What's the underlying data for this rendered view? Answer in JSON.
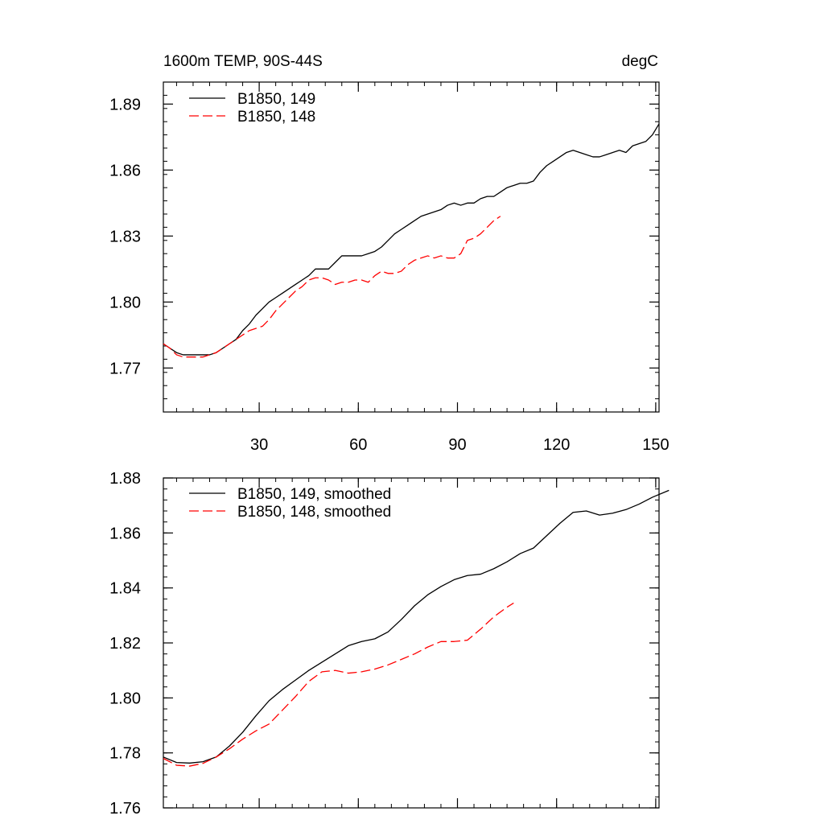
{
  "header": {
    "title_left": "1600m TEMP, 90S-44S",
    "title_right": "degC"
  },
  "chart_data": [
    {
      "type": "line",
      "title": "1600m TEMP, 90S-44S",
      "units": "degC",
      "xlim": [
        1,
        151
      ],
      "ylim": [
        1.75,
        1.9
      ],
      "xticks": [
        30,
        60,
        90,
        120,
        150
      ],
      "yticks": [
        1.77,
        1.8,
        1.83,
        1.86,
        1.89
      ],
      "ytick_labels": [
        "1.77",
        "1.80",
        "1.83",
        "1.86",
        "1.89"
      ],
      "xtick_labels": [
        "30",
        "60",
        "90",
        "120",
        "150"
      ],
      "grid": false,
      "legend_position": "top-left",
      "series": [
        {
          "name": "B1850, 149",
          "color": "#000000",
          "style": "solid",
          "points": [
            [
              1,
              1.781
            ],
            [
              3,
              1.779
            ],
            [
              5,
              1.777
            ],
            [
              7,
              1.776
            ],
            [
              9,
              1.776
            ],
            [
              11,
              1.776
            ],
            [
              13,
              1.776
            ],
            [
              15,
              1.776
            ],
            [
              17,
              1.777
            ],
            [
              19,
              1.779
            ],
            [
              21,
              1.781
            ],
            [
              23,
              1.783
            ],
            [
              25,
              1.787
            ],
            [
              27,
              1.79
            ],
            [
              29,
              1.794
            ],
            [
              31,
              1.797
            ],
            [
              33,
              1.8
            ],
            [
              35,
              1.802
            ],
            [
              37,
              1.804
            ],
            [
              39,
              1.806
            ],
            [
              41,
              1.808
            ],
            [
              43,
              1.81
            ],
            [
              45,
              1.812
            ],
            [
              47,
              1.815
            ],
            [
              49,
              1.815
            ],
            [
              51,
              1.815
            ],
            [
              53,
              1.818
            ],
            [
              55,
              1.821
            ],
            [
              57,
              1.821
            ],
            [
              59,
              1.821
            ],
            [
              61,
              1.821
            ],
            [
              63,
              1.822
            ],
            [
              65,
              1.823
            ],
            [
              67,
              1.825
            ],
            [
              69,
              1.828
            ],
            [
              71,
              1.831
            ],
            [
              73,
              1.833
            ],
            [
              75,
              1.835
            ],
            [
              77,
              1.837
            ],
            [
              79,
              1.839
            ],
            [
              81,
              1.84
            ],
            [
              83,
              1.841
            ],
            [
              85,
              1.842
            ],
            [
              87,
              1.844
            ],
            [
              89,
              1.845
            ],
            [
              91,
              1.844
            ],
            [
              93,
              1.845
            ],
            [
              95,
              1.845
            ],
            [
              97,
              1.847
            ],
            [
              99,
              1.848
            ],
            [
              101,
              1.848
            ],
            [
              103,
              1.85
            ],
            [
              105,
              1.852
            ],
            [
              107,
              1.853
            ],
            [
              109,
              1.854
            ],
            [
              111,
              1.854
            ],
            [
              113,
              1.855
            ],
            [
              115,
              1.859
            ],
            [
              117,
              1.862
            ],
            [
              119,
              1.864
            ],
            [
              121,
              1.866
            ],
            [
              123,
              1.868
            ],
            [
              125,
              1.869
            ],
            [
              127,
              1.868
            ],
            [
              129,
              1.867
            ],
            [
              131,
              1.866
            ],
            [
              133,
              1.866
            ],
            [
              135,
              1.867
            ],
            [
              137,
              1.868
            ],
            [
              139,
              1.869
            ],
            [
              141,
              1.868
            ],
            [
              143,
              1.871
            ],
            [
              145,
              1.872
            ],
            [
              147,
              1.873
            ],
            [
              149,
              1.876
            ],
            [
              151,
              1.881
            ]
          ]
        },
        {
          "name": "B1850, 148",
          "color": "#ff0000",
          "style": "dashed",
          "points": [
            [
              1,
              1.781
            ],
            [
              3,
              1.779
            ],
            [
              5,
              1.776
            ],
            [
              7,
              1.775
            ],
            [
              9,
              1.775
            ],
            [
              11,
              1.775
            ],
            [
              13,
              1.775
            ],
            [
              15,
              1.776
            ],
            [
              17,
              1.777
            ],
            [
              19,
              1.779
            ],
            [
              21,
              1.781
            ],
            [
              23,
              1.783
            ],
            [
              25,
              1.785
            ],
            [
              27,
              1.787
            ],
            [
              29,
              1.788
            ],
            [
              31,
              1.789
            ],
            [
              33,
              1.792
            ],
            [
              35,
              1.796
            ],
            [
              37,
              1.799
            ],
            [
              39,
              1.802
            ],
            [
              41,
              1.805
            ],
            [
              43,
              1.807
            ],
            [
              45,
              1.81
            ],
            [
              47,
              1.811
            ],
            [
              49,
              1.811
            ],
            [
              51,
              1.81
            ],
            [
              53,
              1.808
            ],
            [
              55,
              1.809
            ],
            [
              57,
              1.809
            ],
            [
              59,
              1.81
            ],
            [
              61,
              1.81
            ],
            [
              63,
              1.809
            ],
            [
              65,
              1.812
            ],
            [
              67,
              1.814
            ],
            [
              69,
              1.813
            ],
            [
              71,
              1.813
            ],
            [
              73,
              1.814
            ],
            [
              75,
              1.817
            ],
            [
              77,
              1.819
            ],
            [
              79,
              1.82
            ],
            [
              81,
              1.821
            ],
            [
              83,
              1.82
            ],
            [
              85,
              1.821
            ],
            [
              87,
              1.82
            ],
            [
              89,
              1.82
            ],
            [
              91,
              1.822
            ],
            [
              93,
              1.828
            ],
            [
              95,
              1.829
            ],
            [
              97,
              1.831
            ],
            [
              99,
              1.834
            ],
            [
              101,
              1.837
            ],
            [
              103,
              1.839
            ]
          ]
        }
      ]
    },
    {
      "type": "line",
      "xlim": [
        1,
        151
      ],
      "ylim": [
        1.76,
        1.88
      ],
      "xticks": [
        30,
        60,
        90,
        120,
        150
      ],
      "yticks": [
        1.76,
        1.78,
        1.8,
        1.82,
        1.84,
        1.86,
        1.88
      ],
      "ytick_labels": [
        "1.76",
        "1.78",
        "1.80",
        "1.82",
        "1.84",
        "1.86",
        "1.88"
      ],
      "grid": false,
      "legend_position": "top-left",
      "series": [
        {
          "name": "B1850, 149, smoothed",
          "color": "#000000",
          "style": "solid",
          "points": [
            [
              1,
              1.7785
            ],
            [
              5,
              1.7765
            ],
            [
              9,
              1.7763
            ],
            [
              13,
              1.7768
            ],
            [
              17,
              1.7785
            ],
            [
              21,
              1.7825
            ],
            [
              25,
              1.7875
            ],
            [
              29,
              1.7935
            ],
            [
              33,
              1.799
            ],
            [
              37,
              1.803
            ],
            [
              41,
              1.8065
            ],
            [
              45,
              1.81
            ],
            [
              49,
              1.813
            ],
            [
              53,
              1.816
            ],
            [
              57,
              1.819
            ],
            [
              61,
              1.8205
            ],
            [
              65,
              1.8215
            ],
            [
              69,
              1.824
            ],
            [
              73,
              1.8285
            ],
            [
              77,
              1.8335
            ],
            [
              81,
              1.8375
            ],
            [
              85,
              1.8405
            ],
            [
              89,
              1.843
            ],
            [
              93,
              1.8445
            ],
            [
              97,
              1.845
            ],
            [
              101,
              1.847
            ],
            [
              105,
              1.8495
            ],
            [
              109,
              1.8525
            ],
            [
              113,
              1.8545
            ],
            [
              117,
              1.859
            ],
            [
              121,
              1.8635
            ],
            [
              125,
              1.8675
            ],
            [
              129,
              1.868
            ],
            [
              133,
              1.8665
            ],
            [
              137,
              1.8672
            ],
            [
              141,
              1.8685
            ],
            [
              145,
              1.8705
            ],
            [
              149,
              1.873
            ],
            [
              154,
              1.8755
            ]
          ]
        },
        {
          "name": "B1850, 148, smoothed",
          "color": "#ff0000",
          "style": "dashed",
          "points": [
            [
              1,
              1.778
            ],
            [
              5,
              1.7755
            ],
            [
              9,
              1.7752
            ],
            [
              13,
              1.7762
            ],
            [
              17,
              1.7785
            ],
            [
              21,
              1.7815
            ],
            [
              25,
              1.785
            ],
            [
              29,
              1.788
            ],
            [
              33,
              1.7905
            ],
            [
              37,
              1.7955
            ],
            [
              41,
              1.8005
            ],
            [
              45,
              1.806
            ],
            [
              49,
              1.8095
            ],
            [
              53,
              1.81
            ],
            [
              57,
              1.809
            ],
            [
              61,
              1.8095
            ],
            [
              65,
              1.8105
            ],
            [
              69,
              1.812
            ],
            [
              73,
              1.814
            ],
            [
              77,
              1.816
            ],
            [
              81,
              1.8185
            ],
            [
              85,
              1.8205
            ],
            [
              89,
              1.8205
            ],
            [
              93,
              1.821
            ],
            [
              97,
              1.825
            ],
            [
              101,
              1.8295
            ],
            [
              105,
              1.833
            ],
            [
              107,
              1.8345
            ]
          ]
        }
      ]
    }
  ]
}
